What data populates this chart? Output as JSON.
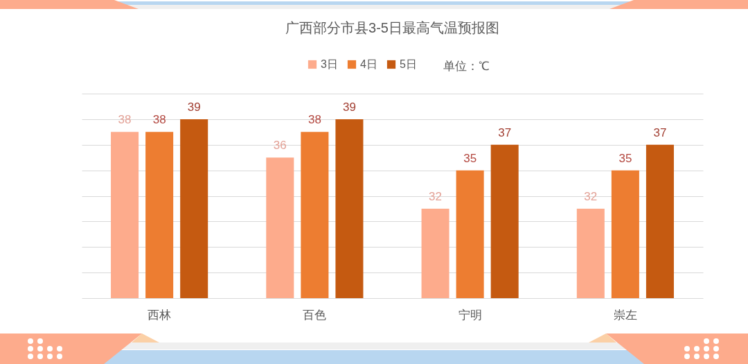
{
  "chart_data": {
    "type": "bar",
    "title": "广西部分市县3-5日最高气温预报图",
    "categories": [
      "西林",
      "百色",
      "宁明",
      "崇左"
    ],
    "series": [
      {
        "name": "3日",
        "color": "#fdab8c",
        "values": [
          38,
          36,
          32,
          32
        ]
      },
      {
        "name": "4日",
        "color": "#ed7d31",
        "values": [
          38,
          38,
          35,
          35
        ]
      },
      {
        "name": "5日",
        "color": "#c55a11",
        "values": [
          39,
          39,
          37,
          37
        ]
      }
    ],
    "ylim": [
      25,
      41
    ],
    "yticks": [
      {
        "value": 25,
        "label": null
      },
      {
        "value": 27,
        "label": null
      },
      {
        "value": 29,
        "label": null
      },
      {
        "value": 31,
        "label": null
      },
      {
        "value": 33,
        "label": null
      },
      {
        "value": 35,
        "label": null
      },
      {
        "value": 37,
        "label": null
      },
      {
        "value": 39,
        "label": null
      },
      {
        "value": 41,
        "label": null
      }
    ],
    "grid": "y",
    "legend": "top",
    "tick_labels": "x",
    "data_labels": true,
    "annotations": [
      "单位：℃"
    ]
  }
}
